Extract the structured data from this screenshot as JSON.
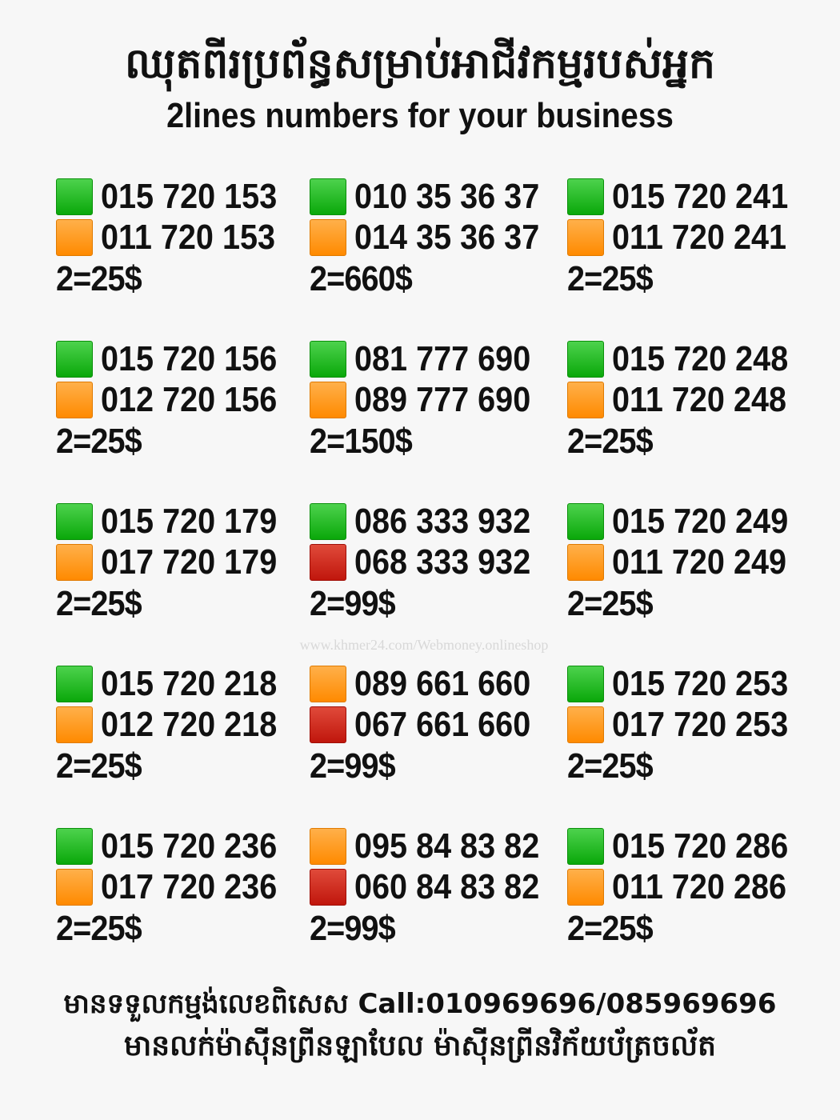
{
  "header": {
    "title_khmer": "ឈុតពីរប្រព័ន្ធសម្រាប់អាជីវកម្មរបស់អ្នក",
    "title_english": "2lines numbers for your business"
  },
  "colors": {
    "green": "#14b014",
    "orange": "#ff9a1a",
    "red": "#d0201a",
    "background": "#f7f7f7"
  },
  "columns": [
    [
      {
        "lines": [
          {
            "color": "green",
            "number": "015 720 153"
          },
          {
            "color": "orange",
            "number": "011 720 153"
          }
        ],
        "price": "2=25$"
      },
      {
        "lines": [
          {
            "color": "green",
            "number": "015 720 156"
          },
          {
            "color": "orange",
            "number": "012 720 156"
          }
        ],
        "price": "2=25$"
      },
      {
        "lines": [
          {
            "color": "green",
            "number": "015 720 179"
          },
          {
            "color": "orange",
            "number": "017 720 179"
          }
        ],
        "price": "2=25$"
      },
      {
        "lines": [
          {
            "color": "green",
            "number": "015 720 218"
          },
          {
            "color": "orange",
            "number": "012 720 218"
          }
        ],
        "price": "2=25$"
      },
      {
        "lines": [
          {
            "color": "green",
            "number": "015 720 236"
          },
          {
            "color": "orange",
            "number": "017 720 236"
          }
        ],
        "price": "2=25$"
      }
    ],
    [
      {
        "lines": [
          {
            "color": "green",
            "number": "010 35 36 37"
          },
          {
            "color": "orange",
            "number": "014 35 36 37"
          }
        ],
        "price": "2=660$"
      },
      {
        "lines": [
          {
            "color": "green",
            "number": "081 777 690"
          },
          {
            "color": "orange",
            "number": "089 777 690"
          }
        ],
        "price": "2=150$"
      },
      {
        "lines": [
          {
            "color": "green",
            "number": "086 333 932"
          },
          {
            "color": "red",
            "number": "068 333 932"
          }
        ],
        "price": "2=99$"
      },
      {
        "lines": [
          {
            "color": "orange",
            "number": "089 661 660"
          },
          {
            "color": "red",
            "number": "067 661 660"
          }
        ],
        "price": "2=99$"
      },
      {
        "lines": [
          {
            "color": "orange",
            "number": "095 84 83 82"
          },
          {
            "color": "red",
            "number": "060 84 83 82"
          }
        ],
        "price": "2=99$"
      }
    ],
    [
      {
        "lines": [
          {
            "color": "green",
            "number": "015 720 241"
          },
          {
            "color": "orange",
            "number": "011 720 241"
          }
        ],
        "price": "2=25$"
      },
      {
        "lines": [
          {
            "color": "green",
            "number": "015 720 248"
          },
          {
            "color": "orange",
            "number": "011 720 248"
          }
        ],
        "price": "2=25$"
      },
      {
        "lines": [
          {
            "color": "green",
            "number": "015 720 249"
          },
          {
            "color": "orange",
            "number": "011 720 249"
          }
        ],
        "price": "2=25$"
      },
      {
        "lines": [
          {
            "color": "green",
            "number": "015 720 253"
          },
          {
            "color": "orange",
            "number": "017 720 253"
          }
        ],
        "price": "2=25$"
      },
      {
        "lines": [
          {
            "color": "green",
            "number": "015 720 286"
          },
          {
            "color": "orange",
            "number": "011 720 286"
          }
        ],
        "price": "2=25$"
      }
    ]
  ],
  "watermark": "www.khmer24.com/Webmoney.onlineshop",
  "footer": {
    "line1": "មានទទួលកម្មង់លេខពិសេស Call:010969696/085969696",
    "line2": "មានលក់ម៉ាស៊ីនព្រីនឡាបែល ម៉ាស៊ីនព្រីនវិក័យប័ត្រចល័ត"
  }
}
